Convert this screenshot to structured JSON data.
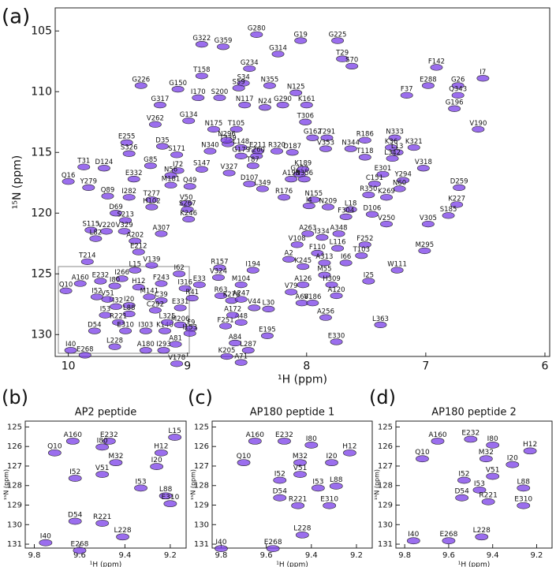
{
  "chart_data": [
    {
      "type": "scatter",
      "panel": "(a)",
      "xlabel": "¹H (ppm)",
      "ylabel": "¹⁵N (ppm)",
      "color": "#7a3ee8",
      "xlim": [
        10.11,
        5.96
      ],
      "ylim": [
        131.8,
        103.1
      ],
      "xticks": [
        10,
        9,
        8,
        7,
        6
      ],
      "yticks": [
        105,
        110,
        115,
        120,
        125,
        130
      ],
      "labels": [
        "G280",
        "G322",
        "G359",
        "G314",
        "G19",
        "G225",
        "T29",
        "S70",
        "F142",
        "I7",
        "G234",
        "T158",
        "S34",
        "S59",
        "N355",
        "N125",
        "G226",
        "G150",
        "I170",
        "S200",
        "E288",
        "F37",
        "G26",
        "Q343",
        "G196",
        "G317",
        "N117",
        "N24",
        "G290",
        "K161",
        "G134",
        "V262",
        "N175",
        "T105",
        "T306",
        "T291",
        "N333",
        "V190",
        "T339",
        "E255",
        "S171",
        "N340",
        "N296",
        "L148",
        "E211",
        "R320",
        "D187",
        "V353",
        "N344",
        "K36",
        "D35",
        "G179",
        "F260",
        "T118",
        "L13",
        "K321",
        "L342",
        "R186",
        "G162",
        "S326",
        "T31",
        "D124",
        "G85",
        "S147",
        "T87",
        "E301",
        "V318",
        "E332",
        "I72",
        "V327",
        "G222",
        "K189",
        "Y294",
        "N56",
        "D107",
        "A198",
        "N356",
        "C151",
        "N60",
        "D259",
        "Q16",
        "Y279",
        "M181",
        "Q49",
        "L349",
        "R350",
        "K269",
        "Q89",
        "I282",
        "T277",
        "V50",
        "R176",
        "N155",
        "K227",
        "H102",
        "S267",
        "N209",
        "I4",
        "L18",
        "D69",
        "K246",
        "S213",
        "V250",
        "V305",
        "S185",
        "F304",
        "D106",
        "S115",
        "V220",
        "V329",
        "L82",
        "A307",
        "A202",
        "I334",
        "A263",
        "A348",
        "V108",
        "E212",
        "F252",
        "L116",
        "F110",
        "T103",
        "M295",
        "T214",
        "V139",
        "W111",
        "A313",
        "K245",
        "A2",
        "L15",
        "I266",
        "R157",
        "I194",
        "I62",
        "I66",
        "V324",
        "M55",
        "I25",
        "A160",
        "E232",
        "F243",
        "I316",
        "E33",
        "M104",
        "A126",
        "H309",
        "I80",
        "H12",
        "Q10",
        "V79",
        "A120",
        "R41",
        "R63",
        "M141",
        "M32",
        "I20",
        "C39",
        "V51",
        "K278",
        "A247",
        "A68",
        "V186",
        "I52",
        "I53",
        "L88",
        "C292",
        "E331",
        "V44",
        "L30",
        "R221",
        "F9",
        "F251",
        "A48",
        "A256",
        "L363",
        "D54",
        "E310",
        "I303",
        "K140",
        "M206",
        "E195",
        "L325",
        "I153",
        "I293",
        "L228",
        "A180",
        "A84",
        "A81",
        "E330",
        "L287",
        "I40",
        "E268",
        "V178",
        "K205",
        "A71",
        "A172"
      ],
      "x": [
        8.42,
        8.88,
        8.7,
        8.24,
        8.05,
        7.74,
        7.7,
        7.62,
        6.91,
        6.52,
        8.48,
        8.88,
        8.53,
        8.57,
        8.31,
        8.09,
        9.39,
        9.08,
        8.91,
        8.73,
        6.98,
        7.16,
        6.73,
        6.73,
        6.76,
        9.23,
        8.52,
        8.35,
        8.2,
        8.0,
        8.99,
        9.27,
        8.78,
        8.59,
        8.01,
        7.83,
        7.26,
        6.56,
        8.66,
        9.51,
        9.09,
        8.81,
        8.67,
        8.55,
        8.41,
        8.25,
        8.12,
        7.84,
        7.63,
        7.29,
        9.21,
        8.55,
        8.42,
        7.51,
        7.24,
        7.1,
        7.28,
        7.51,
        7.95,
        9.49,
        9.87,
        9.7,
        9.31,
        8.88,
        8.45,
        7.36,
        7.02,
        9.45,
        9.08,
        8.65,
        8.06,
        8.03,
        7.19,
        9.14,
        8.48,
        8.13,
        8.02,
        7.43,
        7.22,
        6.72,
        10.0,
        9.83,
        9.14,
        8.98,
        8.37,
        7.48,
        7.33,
        9.67,
        9.49,
        9.3,
        9.01,
        8.19,
        7.94,
        6.74,
        9.3,
        9.0,
        7.82,
        7.98,
        7.63,
        9.6,
        8.99,
        9.52,
        7.33,
        6.98,
        6.81,
        7.67,
        7.45,
        9.81,
        9.68,
        9.53,
        9.77,
        9.22,
        9.44,
        7.87,
        7.99,
        7.73,
        8.08,
        9.41,
        7.51,
        7.74,
        7.91,
        7.54,
        7.01,
        9.84,
        9.3,
        7.24,
        7.85,
        8.03,
        8.15,
        9.44,
        9.55,
        8.73,
        8.45,
        9.07,
        7.67,
        8.74,
        7.85,
        7.48,
        9.9,
        9.73,
        9.22,
        9.02,
        8.9,
        8.55,
        8.03,
        7.79,
        9.61,
        9.41,
        10.02,
        8.13,
        7.75,
        8.96,
        8.72,
        9.32,
        9.6,
        9.49,
        9.22,
        9.67,
        8.63,
        8.55,
        8.04,
        7.95,
        9.76,
        9.69,
        9.49,
        9.27,
        9.06,
        8.44,
        8.32,
        9.58,
        8.97,
        8.68,
        8.55,
        7.84,
        7.38,
        9.78,
        9.52,
        9.35,
        9.19,
        9.06,
        8.33,
        9.17,
        8.98,
        9.2,
        9.61,
        9.35,
        8.6,
        9.1,
        7.75,
        8.49,
        9.98,
        9.86,
        9.09,
        8.67,
        8.55,
        8.62
      ],
      "y": [
        104.8,
        105.6,
        105.8,
        106.4,
        105.3,
        105.3,
        106.8,
        107.4,
        107.5,
        108.4,
        107.6,
        108.2,
        108.8,
        109.2,
        109.0,
        109.6,
        109.0,
        109.3,
        110.0,
        110.0,
        109.0,
        109.8,
        109.0,
        109.8,
        110.9,
        110.6,
        110.6,
        110.8,
        110.6,
        110.6,
        111.9,
        112.2,
        112.6,
        112.6,
        112.0,
        113.3,
        113.3,
        112.6,
        113.8,
        113.7,
        114.7,
        114.4,
        113.5,
        114.1,
        114.4,
        114.4,
        114.5,
        114.2,
        114.2,
        114.1,
        114.0,
        114.8,
        114.8,
        114.9,
        114.5,
        114.1,
        115.0,
        113.5,
        113.3,
        114.6,
        115.7,
        115.8,
        115.6,
        115.9,
        115.6,
        116.3,
        115.8,
        116.7,
        116.0,
        116.2,
        116.3,
        115.9,
        116.8,
        116.4,
        117.1,
        116.7,
        116.7,
        117.1,
        117.5,
        117.4,
        116.9,
        117.4,
        117.2,
        117.3,
        117.5,
        118.0,
        118.2,
        118.1,
        118.2,
        118.4,
        118.7,
        118.2,
        118.4,
        118.8,
        119.0,
        119.2,
        119.0,
        118.9,
        119.2,
        119.5,
        120.0,
        120.1,
        120.4,
        120.4,
        119.7,
        119.8,
        119.6,
        120.9,
        121.0,
        121.0,
        121.6,
        121.2,
        121.8,
        121.5,
        121.2,
        121.2,
        122.1,
        122.7,
        122.1,
        122.4,
        122.8,
        123.0,
        122.6,
        123.5,
        123.8,
        124.2,
        123.6,
        123.9,
        123.3,
        124.2,
        124.9,
        124.0,
        124.2,
        124.5,
        123.6,
        124.8,
        124.6,
        125.1,
        125.3,
        125.1,
        125.3,
        125.7,
        125.4,
        125.4,
        125.4,
        125.4,
        125.5,
        125.6,
        125.9,
        126.0,
        126.3,
        126.5,
        126.3,
        126.4,
        127.2,
        127.1,
        126.7,
        126.6,
        126.7,
        126.6,
        126.9,
        126.9,
        126.4,
        127.9,
        127.8,
        127.5,
        127.3,
        127.3,
        127.4,
        128.5,
        129.0,
        128.8,
        128.5,
        128.1,
        128.7,
        129.2,
        129.2,
        129.2,
        129.2,
        128.7,
        129.6,
        128.5,
        129.4,
        130.8,
        130.5,
        130.8,
        130.2,
        130.3,
        130.1,
        130.8,
        130.8,
        131.2,
        131.9,
        131.3,
        131.8,
        127.9
      ]
    },
    {
      "type": "scatter",
      "panel": "(b)",
      "title": "AP2 peptide",
      "xlabel": "¹H (ppm)",
      "ylabel": "¹⁵N (ppm)",
      "color": "#7a3ee8",
      "xlim": [
        9.84,
        9.13
      ],
      "ylim": [
        131.2,
        124.7
      ],
      "xticks": [
        9.8,
        9.6,
        9.4,
        9.2
      ],
      "yticks": [
        125,
        126,
        127,
        128,
        129,
        130,
        131
      ],
      "labels": [
        "A160",
        "Q10",
        "E232",
        "I80",
        "M32",
        "I20",
        "H12",
        "L15",
        "V51",
        "I52",
        "I53",
        "L88",
        "E310",
        "D54",
        "R221",
        "L228",
        "I40",
        "E268"
      ],
      "x": [
        9.63,
        9.71,
        9.47,
        9.5,
        9.44,
        9.26,
        9.24,
        9.18,
        9.5,
        9.62,
        9.33,
        9.22,
        9.2,
        9.62,
        9.5,
        9.41,
        9.75,
        9.6
      ],
      "y": [
        125.4,
        126.0,
        125.4,
        125.7,
        126.5,
        126.7,
        126.0,
        125.2,
        127.1,
        127.3,
        127.8,
        128.2,
        128.6,
        129.5,
        129.6,
        130.3,
        130.6,
        131.0
      ]
    },
    {
      "type": "scatter",
      "panel": "(c)",
      "title": "AP180 peptide 1",
      "xlabel": "¹H (ppm)",
      "ylabel": "¹⁵N (ppm)",
      "color": "#7a3ee8",
      "xlim": [
        9.84,
        9.13
      ],
      "ylim": [
        131.2,
        124.7
      ],
      "xticks": [
        9.8,
        9.6,
        9.4,
        9.2
      ],
      "yticks": [
        125,
        126,
        127,
        128,
        129,
        130,
        131
      ],
      "labels": [
        "A160",
        "E232",
        "I80",
        "H12",
        "Q10",
        "M32",
        "I20",
        "I52",
        "V51",
        "I53",
        "L88",
        "E310",
        "D54",
        "R221",
        "L228",
        "I40",
        "E268"
      ],
      "x": [
        9.65,
        9.52,
        9.4,
        9.23,
        9.7,
        9.45,
        9.31,
        9.54,
        9.45,
        9.37,
        9.29,
        9.32,
        9.54,
        9.46,
        9.44,
        9.8,
        9.57
      ],
      "y": [
        125.4,
        125.4,
        125.6,
        126.0,
        126.5,
        126.5,
        126.5,
        127.4,
        127.1,
        127.8,
        127.7,
        128.7,
        128.3,
        128.7,
        130.2,
        130.9,
        130.9
      ]
    },
    {
      "type": "scatter",
      "panel": "(d)",
      "title": "AP180 peptide 2",
      "xlabel": "¹H (ppm)",
      "ylabel": "¹⁵N (ppm)",
      "color": "#7a3ee8",
      "xlim": [
        9.84,
        9.13
      ],
      "ylim": [
        131.2,
        124.7
      ],
      "xticks": [
        9.8,
        9.6,
        9.4,
        9.2
      ],
      "yticks": [
        125,
        126,
        127,
        128,
        129,
        130,
        131
      ],
      "labels": [
        "A160",
        "E232",
        "I80",
        "H12",
        "Q10",
        "M32",
        "I20",
        "I52",
        "V51",
        "I53",
        "L88",
        "E310",
        "D54",
        "R221",
        "L228",
        "I40",
        "E268"
      ],
      "x": [
        9.65,
        9.5,
        9.4,
        9.23,
        9.72,
        9.43,
        9.31,
        9.53,
        9.4,
        9.46,
        9.26,
        9.26,
        9.54,
        9.42,
        9.45,
        9.76,
        9.6
      ],
      "y": [
        125.4,
        125.3,
        125.6,
        125.9,
        126.3,
        126.3,
        126.6,
        127.4,
        127.2,
        127.9,
        127.8,
        128.7,
        128.3,
        128.5,
        130.3,
        130.5,
        130.5
      ]
    }
  ]
}
